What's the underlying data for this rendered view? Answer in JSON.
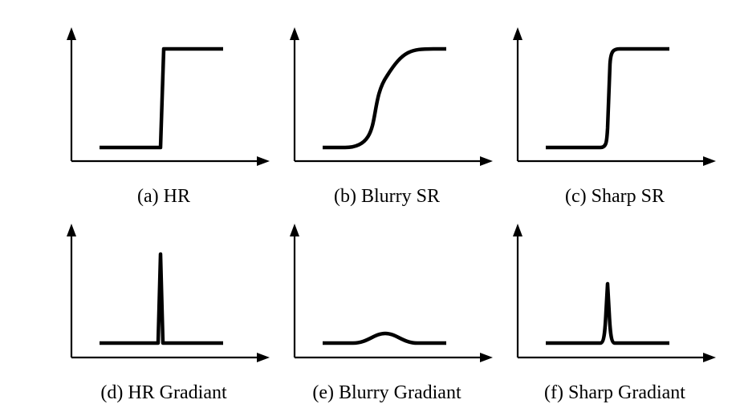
{
  "panels": [
    {
      "id": "a",
      "caption": "(a)  HR",
      "kind": "step-sharp"
    },
    {
      "id": "b",
      "caption": "(b)  Blurry SR",
      "kind": "step-blurry"
    },
    {
      "id": "c",
      "caption": "(c)  Sharp SR",
      "kind": "step-near-sharp"
    },
    {
      "id": "d",
      "caption": "(d)  HR Gradiant",
      "kind": "spike-tall"
    },
    {
      "id": "e",
      "caption": "(e)  Blurry Gradiant",
      "kind": "bump-low"
    },
    {
      "id": "f",
      "caption": "(f)  Sharp Gradiant",
      "kind": "spike-medium"
    }
  ]
}
